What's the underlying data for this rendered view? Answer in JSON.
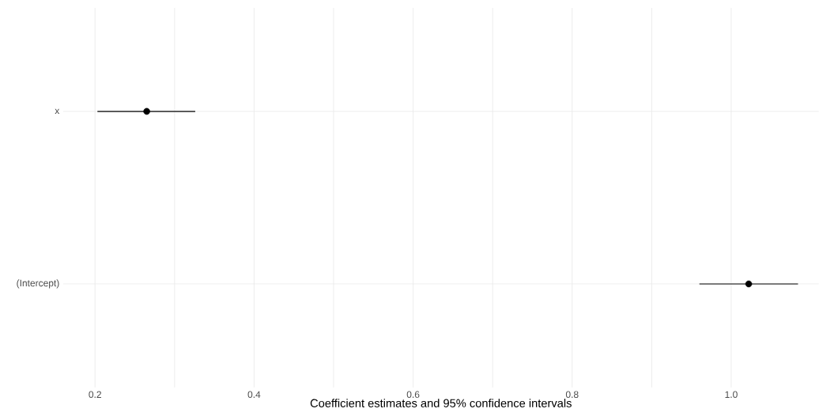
{
  "chart_data": {
    "type": "scatter",
    "orientation": "horizontal",
    "xlabel": "Coefficient estimates and 95% confidence intervals",
    "categories": [
      "x",
      "(Intercept)"
    ],
    "values": [
      0.265,
      1.022
    ],
    "errors": [
      [
        0.203,
        0.326
      ],
      [
        0.96,
        1.084
      ]
    ],
    "color": "#000000",
    "marker": "circle",
    "xlim": [
      0.16,
      1.11
    ],
    "xticks": [
      0.2,
      {
        "value": 0.3,
        "label": null
      },
      0.4,
      {
        "value": 0.5,
        "label": null
      },
      0.6,
      {
        "value": 0.7,
        "label": null
      },
      0.8,
      {
        "value": 0.9,
        "label": null
      },
      {
        "value": 1,
        "label": "1.0"
      }
    ],
    "grid": true
  }
}
